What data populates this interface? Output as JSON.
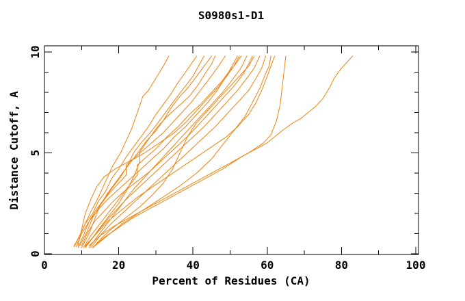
{
  "chart_data": {
    "type": "line",
    "title": "S0980s1-D1",
    "xlabel": "Percent of Residues (CA)",
    "ylabel": "Distance Cutoff, A",
    "xlim": [
      0,
      100
    ],
    "ylim": [
      0,
      10
    ],
    "grid": false,
    "legend": "none",
    "line_color": "#EF820D",
    "axis_color": "#000000",
    "background_color": "#FFFFFF",
    "x_axis": {
      "major_ticks": [
        0,
        20,
        40,
        60,
        80,
        100
      ],
      "major_labels": [
        "0",
        "20",
        "40",
        "60",
        "80",
        "100"
      ],
      "minor_ticks": [
        10,
        30,
        50,
        70,
        90
      ]
    },
    "y_axis": {
      "major_ticks": [
        0,
        5,
        10
      ],
      "major_labels": [
        "0",
        "5",
        "10"
      ],
      "minor_ticks": [
        1,
        2,
        3,
        4,
        6,
        7,
        8,
        9
      ]
    },
    "series_units": "each series is a list of [percent_of_residues, distance_cutoff_A] points",
    "series": [
      [
        [
          8,
          0.35
        ],
        [
          9.5,
          0.9
        ],
        [
          11,
          1.5
        ],
        [
          12.5,
          2.1
        ],
        [
          14,
          2.6
        ],
        [
          15.5,
          3.2
        ],
        [
          17,
          3.8
        ],
        [
          18.5,
          4.4
        ],
        [
          20.5,
          5.0
        ],
        [
          22,
          5.6
        ],
        [
          23.5,
          6.2
        ],
        [
          25,
          7.0
        ],
        [
          26.5,
          7.8
        ],
        [
          28,
          8.1
        ],
        [
          30,
          8.7
        ],
        [
          32,
          9.3
        ],
        [
          33.5,
          9.8
        ]
      ],
      [
        [
          13,
          0.3
        ],
        [
          16,
          0.8
        ],
        [
          20,
          1.3
        ],
        [
          24,
          1.8
        ],
        [
          28,
          2.2
        ],
        [
          33,
          2.7
        ],
        [
          38,
          3.2
        ],
        [
          43,
          3.7
        ],
        [
          48,
          4.2
        ],
        [
          53,
          4.8
        ],
        [
          56,
          5.1
        ],
        [
          60,
          5.5
        ],
        [
          64,
          6.1
        ],
        [
          67,
          6.5
        ],
        [
          69,
          6.7
        ],
        [
          71,
          7.0
        ],
        [
          73,
          7.3
        ],
        [
          75,
          7.7
        ],
        [
          77,
          8.3
        ],
        [
          78,
          8.7
        ],
        [
          80,
          9.2
        ],
        [
          81.5,
          9.5
        ],
        [
          83,
          9.8
        ]
      ],
      [
        [
          12,
          0.4
        ],
        [
          15,
          0.9
        ],
        [
          19,
          1.4
        ],
        [
          24,
          1.9
        ],
        [
          29,
          2.4
        ],
        [
          34,
          2.9
        ],
        [
          39,
          3.4
        ],
        [
          45,
          4.0
        ],
        [
          50,
          4.5
        ],
        [
          55,
          5.0
        ],
        [
          59,
          5.5
        ],
        [
          61,
          5.9
        ],
        [
          62.5,
          6.6
        ],
        [
          63.5,
          7.4
        ],
        [
          64,
          8.2
        ],
        [
          64.5,
          9.0
        ],
        [
          65,
          9.8
        ]
      ],
      [
        [
          11,
          0.4
        ],
        [
          14,
          1.0
        ],
        [
          17,
          1.6
        ],
        [
          21,
          2.2
        ],
        [
          25,
          2.8
        ],
        [
          29,
          3.3
        ],
        [
          33,
          3.8
        ],
        [
          37,
          4.3
        ],
        [
          41,
          4.8
        ],
        [
          45,
          5.3
        ],
        [
          49,
          5.8
        ],
        [
          52,
          6.3
        ],
        [
          55,
          6.9
        ],
        [
          57,
          7.5
        ],
        [
          58.5,
          8.1
        ],
        [
          60,
          8.8
        ],
        [
          61,
          9.3
        ],
        [
          62,
          9.8
        ]
      ],
      [
        [
          8,
          0.4
        ],
        [
          9.5,
          0.9
        ],
        [
          11,
          1.5
        ],
        [
          13,
          2.0
        ],
        [
          14.5,
          2.6
        ],
        [
          16.5,
          3.1
        ],
        [
          18,
          3.7
        ],
        [
          20,
          4.2
        ],
        [
          22,
          4.8
        ],
        [
          24,
          5.3
        ],
        [
          26,
          5.8
        ],
        [
          28,
          6.3
        ],
        [
          30,
          6.9
        ],
        [
          32,
          7.4
        ],
        [
          34,
          7.9
        ],
        [
          36,
          8.5
        ],
        [
          38,
          9.0
        ],
        [
          39.5,
          9.4
        ],
        [
          41,
          9.8
        ]
      ],
      [
        [
          9,
          0.3
        ],
        [
          10.5,
          0.9
        ],
        [
          12,
          1.6
        ],
        [
          14,
          2.2
        ],
        [
          16,
          2.7
        ],
        [
          18,
          3.2
        ],
        [
          20.5,
          3.8
        ],
        [
          22.5,
          4.4
        ],
        [
          24,
          5.0
        ],
        [
          26,
          5.5
        ],
        [
          28.5,
          6.0
        ],
        [
          31,
          6.6
        ],
        [
          33,
          7.1
        ],
        [
          35,
          7.6
        ],
        [
          37.5,
          8.2
        ],
        [
          40,
          8.8
        ],
        [
          41.5,
          9.3
        ],
        [
          43,
          9.8
        ]
      ],
      [
        [
          10,
          0.3
        ],
        [
          12,
          1.0
        ],
        [
          13.5,
          1.7
        ],
        [
          15,
          2.4
        ],
        [
          17,
          3.0
        ],
        [
          19,
          3.5
        ],
        [
          21,
          4.0
        ],
        [
          23.5,
          4.6
        ],
        [
          25.5,
          5.1
        ],
        [
          27.5,
          5.6
        ],
        [
          30,
          6.1
        ],
        [
          32,
          6.6
        ],
        [
          34,
          7.2
        ],
        [
          36,
          7.7
        ],
        [
          38.5,
          8.2
        ],
        [
          41,
          8.8
        ],
        [
          43,
          9.3
        ],
        [
          45,
          9.8
        ]
      ],
      [
        [
          11,
          0.3
        ],
        [
          13,
          0.8
        ],
        [
          15,
          1.3
        ],
        [
          17.5,
          1.9
        ],
        [
          20,
          2.5
        ],
        [
          22,
          3.1
        ],
        [
          24,
          3.8
        ],
        [
          25.5,
          4.5
        ],
        [
          25.5,
          5.0
        ],
        [
          27,
          5.4
        ],
        [
          28.5,
          5.8
        ],
        [
          30.5,
          6.3
        ],
        [
          33,
          6.8
        ],
        [
          36,
          7.3
        ],
        [
          39,
          7.8
        ],
        [
          41.5,
          8.4
        ],
        [
          43.5,
          9.0
        ],
        [
          45,
          9.4
        ],
        [
          46,
          9.8
        ]
      ],
      [
        [
          9.5,
          0.4
        ],
        [
          11.5,
          1.1
        ],
        [
          13,
          1.8
        ],
        [
          15,
          2.4
        ],
        [
          17,
          2.9
        ],
        [
          19.5,
          3.4
        ],
        [
          22,
          3.9
        ],
        [
          22,
          4.4
        ],
        [
          24.5,
          4.8
        ],
        [
          27,
          5.2
        ],
        [
          29.5,
          5.6
        ],
        [
          32,
          6.0
        ],
        [
          34.5,
          6.5
        ],
        [
          37,
          7.0
        ],
        [
          39.5,
          7.5
        ],
        [
          42,
          8.1
        ],
        [
          44.5,
          8.7
        ],
        [
          46.5,
          9.2
        ],
        [
          48.7,
          9.8
        ]
      ],
      [
        [
          8.5,
          0.35
        ],
        [
          10,
          1.0
        ],
        [
          12,
          1.6
        ],
        [
          14.5,
          2.2
        ],
        [
          17,
          2.7
        ],
        [
          20,
          3.2
        ],
        [
          23,
          3.7
        ],
        [
          26,
          4.2
        ],
        [
          29,
          4.7
        ],
        [
          32,
          5.2
        ],
        [
          35,
          5.8
        ],
        [
          38,
          6.3
        ],
        [
          41,
          6.9
        ],
        [
          44,
          7.5
        ],
        [
          46.5,
          8.1
        ],
        [
          49,
          8.8
        ],
        [
          50.5,
          9.3
        ],
        [
          52,
          9.8
        ]
      ],
      [
        [
          9,
          0.4
        ],
        [
          10,
          1.2
        ],
        [
          11,
          2.0
        ],
        [
          12.5,
          2.7
        ],
        [
          14,
          3.3
        ],
        [
          16,
          3.8
        ],
        [
          19,
          4.2
        ],
        [
          23,
          4.6
        ],
        [
          27,
          5.0
        ],
        [
          31,
          5.5
        ],
        [
          35,
          6.0
        ],
        [
          38,
          6.5
        ],
        [
          41,
          7.1
        ],
        [
          44,
          7.7
        ],
        [
          47,
          8.3
        ],
        [
          49.5,
          8.9
        ],
        [
          51,
          9.3
        ],
        [
          52.5,
          9.8
        ]
      ],
      [
        [
          10.5,
          0.3
        ],
        [
          12.5,
          0.9
        ],
        [
          15,
          1.5
        ],
        [
          17.5,
          2.1
        ],
        [
          20,
          2.7
        ],
        [
          22.5,
          3.3
        ],
        [
          25,
          3.9
        ],
        [
          25,
          4.4
        ],
        [
          27.5,
          4.8
        ],
        [
          30,
          5.2
        ],
        [
          33,
          5.8
        ],
        [
          36,
          6.3
        ],
        [
          39,
          6.9
        ],
        [
          42,
          7.4
        ],
        [
          45,
          8.0
        ],
        [
          48,
          8.6
        ],
        [
          50,
          9.1
        ],
        [
          51.5,
          9.4
        ],
        [
          53,
          9.8
        ]
      ],
      [
        [
          12,
          0.3
        ],
        [
          14,
          0.8
        ],
        [
          16.5,
          1.4
        ],
        [
          19,
          2.0
        ],
        [
          21.5,
          2.6
        ],
        [
          24,
          3.2
        ],
        [
          27,
          3.8
        ],
        [
          30,
          4.4
        ],
        [
          33,
          5.0
        ],
        [
          36,
          5.6
        ],
        [
          39,
          6.2
        ],
        [
          42,
          6.8
        ],
        [
          45,
          7.4
        ],
        [
          48,
          8.0
        ],
        [
          50.5,
          8.6
        ],
        [
          52.5,
          9.1
        ],
        [
          53.5,
          9.4
        ],
        [
          54.5,
          9.8
        ]
      ],
      [
        [
          10,
          0.4
        ],
        [
          11.5,
          1.0
        ],
        [
          13.5,
          1.6
        ],
        [
          16,
          2.1
        ],
        [
          18.5,
          2.6
        ],
        [
          21.5,
          3.1
        ],
        [
          25,
          3.6
        ],
        [
          28.5,
          4.1
        ],
        [
          32,
          4.7
        ],
        [
          35.5,
          5.3
        ],
        [
          39,
          5.9
        ],
        [
          42,
          6.5
        ],
        [
          45,
          7.1
        ],
        [
          48,
          7.7
        ],
        [
          51,
          8.3
        ],
        [
          53.5,
          8.9
        ],
        [
          55,
          9.4
        ],
        [
          56,
          9.8
        ]
      ],
      [
        [
          13,
          0.3
        ],
        [
          15.5,
          0.8
        ],
        [
          18.5,
          1.3
        ],
        [
          22,
          1.8
        ],
        [
          25.5,
          2.3
        ],
        [
          29,
          2.9
        ],
        [
          32,
          3.5
        ],
        [
          34.5,
          4.2
        ],
        [
          36.5,
          5.0
        ],
        [
          38.5,
          5.8
        ],
        [
          41,
          6.5
        ],
        [
          44,
          7.1
        ],
        [
          47,
          7.7
        ],
        [
          50,
          8.3
        ],
        [
          53,
          8.9
        ],
        [
          55,
          9.3
        ],
        [
          56.5,
          9.8
        ]
      ],
      [
        [
          11,
          0.35
        ],
        [
          13.5,
          0.9
        ],
        [
          16,
          1.5
        ],
        [
          19,
          2.1
        ],
        [
          22,
          2.7
        ],
        [
          25.5,
          3.3
        ],
        [
          29,
          3.9
        ],
        [
          32.5,
          4.5
        ],
        [
          36,
          5.1
        ],
        [
          39.5,
          5.7
        ],
        [
          43,
          6.3
        ],
        [
          46,
          6.9
        ],
        [
          49,
          7.5
        ],
        [
          52,
          8.1
        ],
        [
          54.5,
          8.7
        ],
        [
          56.5,
          9.2
        ],
        [
          58,
          9.8
        ]
      ],
      [
        [
          12.5,
          0.3
        ],
        [
          15,
          0.9
        ],
        [
          18,
          1.5
        ],
        [
          21.5,
          2.1
        ],
        [
          25,
          2.7
        ],
        [
          28.5,
          3.3
        ],
        [
          32,
          3.9
        ],
        [
          35.5,
          4.5
        ],
        [
          39,
          5.1
        ],
        [
          42.5,
          5.7
        ],
        [
          46,
          6.3
        ],
        [
          49,
          6.9
        ],
        [
          52,
          7.5
        ],
        [
          55,
          8.1
        ],
        [
          57,
          8.7
        ],
        [
          58.5,
          9.2
        ],
        [
          59.6,
          9.8
        ]
      ],
      [
        [
          13,
          0.3
        ],
        [
          17,
          0.9
        ],
        [
          21,
          1.5
        ],
        [
          26,
          2.1
        ],
        [
          31,
          2.7
        ],
        [
          36,
          3.3
        ],
        [
          41,
          4.0
        ],
        [
          45,
          4.7
        ],
        [
          48,
          5.4
        ],
        [
          51,
          6.1
        ],
        [
          54,
          6.8
        ],
        [
          56,
          7.5
        ],
        [
          58,
          8.2
        ],
        [
          59.5,
          8.9
        ],
        [
          60.5,
          9.3
        ],
        [
          61,
          9.8
        ]
      ]
    ]
  }
}
